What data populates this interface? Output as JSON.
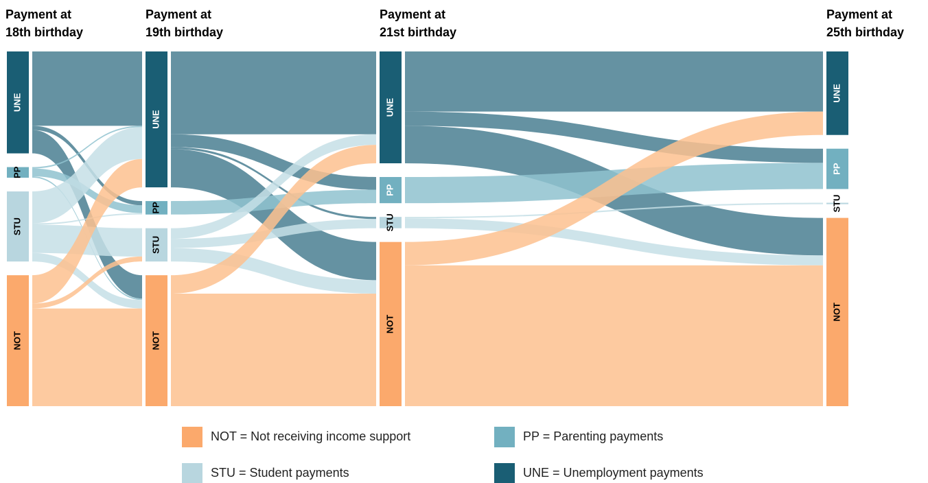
{
  "chart_data": {
    "type": "sankey",
    "stages": [
      {
        "title": [
          "Payment at",
          "18th birthday"
        ]
      },
      {
        "title": [
          "Payment at",
          "19th birthday"
        ]
      },
      {
        "title": [
          "Payment at",
          "21st birthday"
        ]
      },
      {
        "title": [
          "Payment at",
          "25th birthday"
        ]
      }
    ],
    "categories": [
      "UNE",
      "PP",
      "STU",
      "NOT"
    ],
    "node_colors": [
      "#1a5e74",
      "#72b0c0",
      "#b8d6df",
      "#fba96c"
    ],
    "link_colors": [
      "#4a7f92",
      "#8fc2cf",
      "#c6dfe6",
      "#fdc18f"
    ],
    "label_colors": [
      "#ffffff",
      "#ffffff",
      "#000000",
      "#000000"
    ],
    "flows": [
      [
        [
          105,
          6,
          0,
          33
        ],
        [
          2,
          11,
          0,
          2
        ],
        [
          45,
          2,
          40,
          12
        ],
        [
          40,
          0,
          7,
          138
        ]
      ],
      [
        [
          117,
          18,
          3,
          54
        ],
        [
          0,
          19,
          0,
          0
        ],
        [
          15,
          0,
          13,
          19
        ],
        [
          26,
          0,
          0,
          159
        ]
      ],
      [
        [
          85,
          20,
          0,
          53
        ],
        [
          0,
          37,
          0,
          0
        ],
        [
          0,
          0,
          2,
          14
        ],
        [
          33,
          0,
          0,
          199
        ]
      ]
    ],
    "legend": [
      {
        "text": "NOT = Not receiving income support",
        "color": "#fba96c"
      },
      {
        "text": "PP = Parenting payments",
        "color": "#72b0c0"
      },
      {
        "text": "STU = Student payments",
        "color": "#b8d6df"
      },
      {
        "text": "UNE = Unemployment payments",
        "color": "#1a5e74"
      }
    ]
  }
}
